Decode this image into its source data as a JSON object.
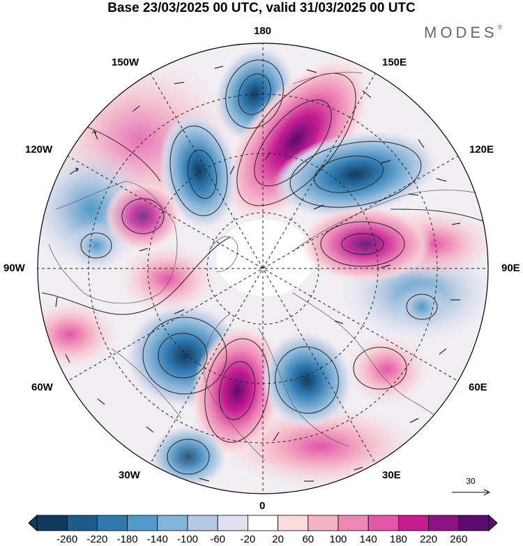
{
  "header": {
    "title": "Base 23/03/2025 00 UTC, valid 31/03/2025 00 UTC",
    "brand": "MODES",
    "brand_mark": "®"
  },
  "longitude_labels": {
    "top": "180",
    "bottom": "0",
    "left": "90W",
    "right": "90E",
    "w150": "150W",
    "e150": "150E",
    "w120": "120W",
    "e120": "120E",
    "w60": "60W",
    "e60": "60E",
    "w30": "30W",
    "e30": "30E"
  },
  "vector_reference": {
    "value": "30"
  },
  "colorbar": {
    "labels": [
      "-260",
      "-220",
      "-180",
      "-140",
      "-100",
      "-60",
      "-20",
      "20",
      "60",
      "100",
      "140",
      "180",
      "220",
      "260"
    ],
    "colors": [
      "#123a5c",
      "#1c5b8a",
      "#2e7ab0",
      "#4f9ac9",
      "#84b4d8",
      "#b5c9e2",
      "#e0dff0",
      "#ffffff",
      "#fadbdc",
      "#f5b4c6",
      "#ee88b7",
      "#e356a8",
      "#c51c92",
      "#8e1382",
      "#5c0b6e"
    ]
  },
  "map": {
    "projection": "north polar stereographic",
    "anomalies": [
      {
        "name": "low-180-pacific",
        "sign": "negative",
        "level": -180
      },
      {
        "name": "high-150e",
        "sign": "positive",
        "level": 260
      },
      {
        "name": "low-120e",
        "sign": "negative",
        "level": -220
      },
      {
        "name": "low-150w",
        "sign": "negative",
        "level": -220
      },
      {
        "name": "high-120w",
        "sign": "positive",
        "level": 140
      },
      {
        "name": "high-90e",
        "sign": "positive",
        "level": 220
      },
      {
        "name": "low-60w-atlantic",
        "sign": "negative",
        "level": -260
      },
      {
        "name": "high-30w",
        "sign": "positive",
        "level": 260
      },
      {
        "name": "low-30e",
        "sign": "negative",
        "level": -220
      },
      {
        "name": "high-60e",
        "sign": "positive",
        "level": 140
      },
      {
        "name": "low-30w-south",
        "sign": "negative",
        "level": -140
      }
    ]
  }
}
